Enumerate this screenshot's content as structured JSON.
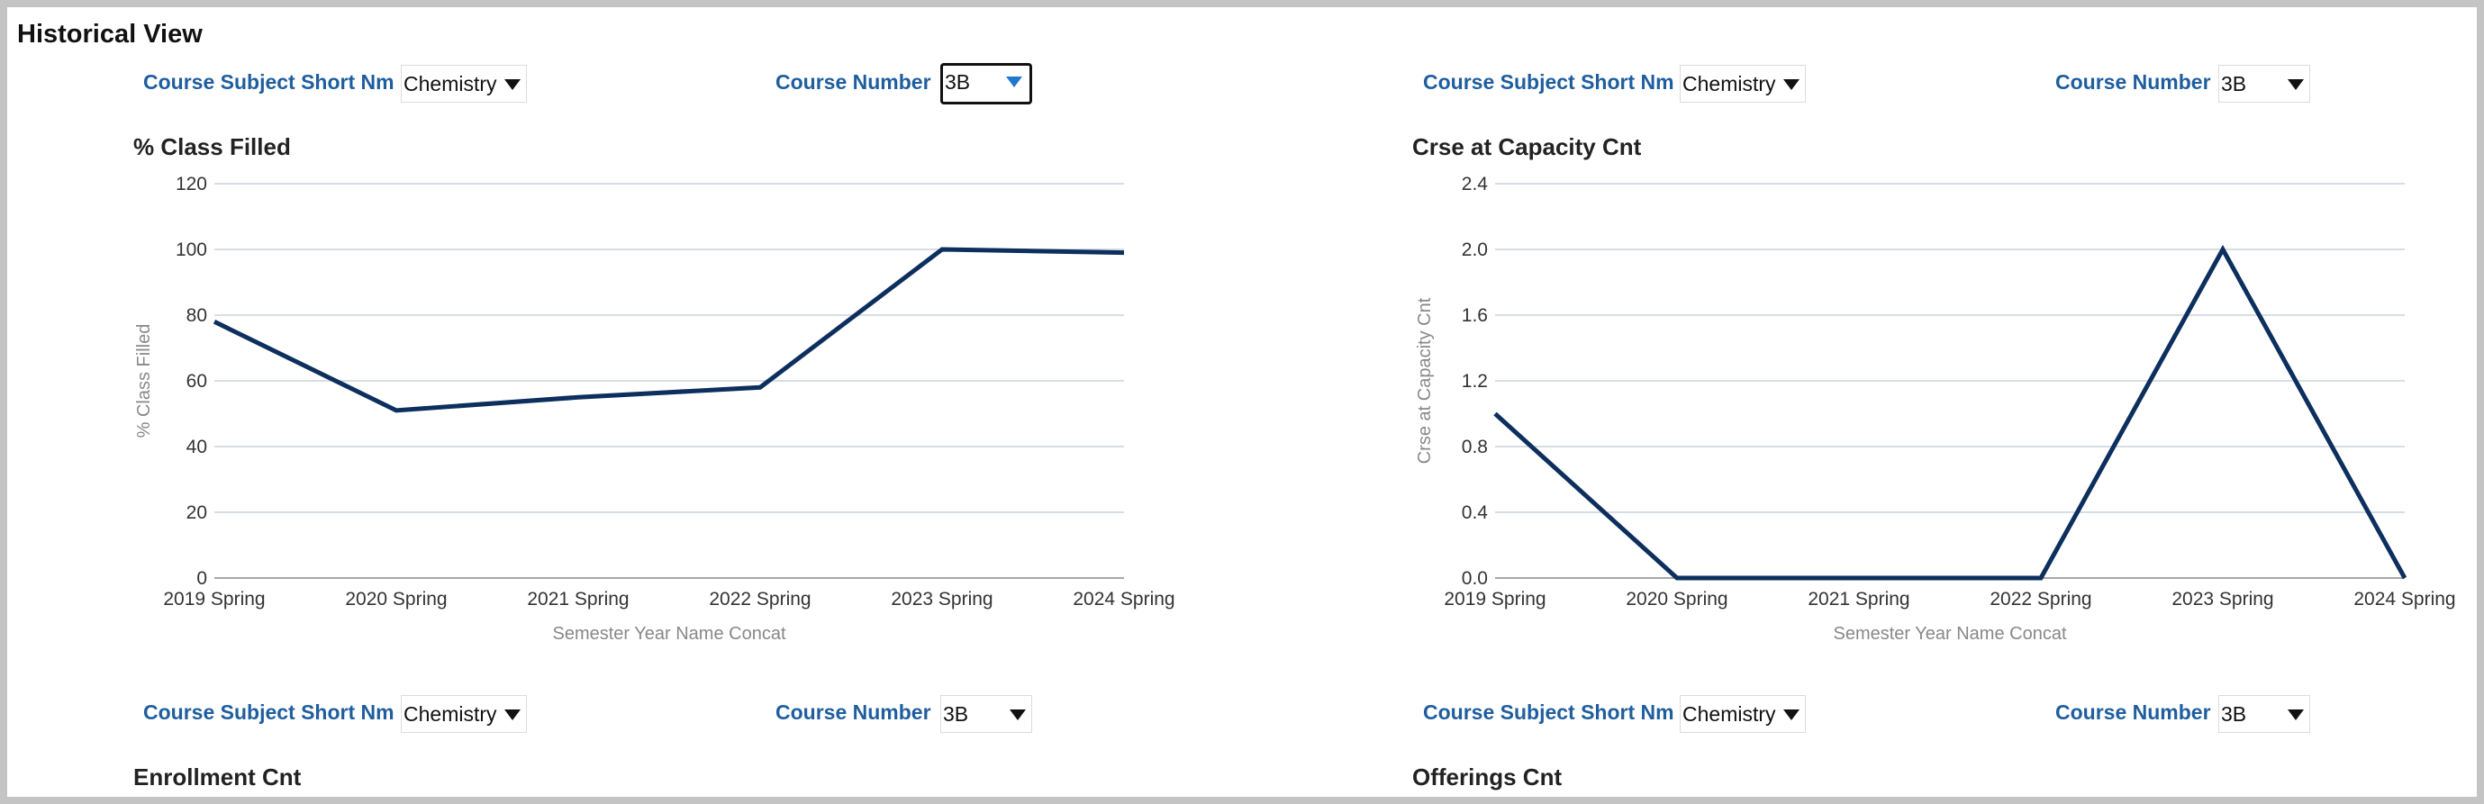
{
  "page": {
    "title": "Historical View"
  },
  "filters": [
    {
      "subject_label": "Course Subject Short Nm",
      "subject_value": "Chemistry",
      "number_label": "Course Number",
      "number_value": "3B"
    },
    {
      "subject_label": "Course Subject Short Nm",
      "subject_value": "Chemistry",
      "number_label": "Course Number",
      "number_value": "3B"
    },
    {
      "subject_label": "Course Subject Short Nm",
      "subject_value": "Chemistry",
      "number_label": "Course Number",
      "number_value": "3B"
    },
    {
      "subject_label": "Course Subject Short Nm",
      "subject_value": "Chemistry",
      "number_label": "Course Number",
      "number_value": "3B"
    }
  ],
  "colors": {
    "line": "#0d2f5e",
    "grid": "#c9d3dc",
    "label": "#1f5e9e"
  },
  "chart_data": [
    {
      "type": "line",
      "title": "% Class Filled",
      "xlabel": "Semester Year Name Concat",
      "ylabel": "% Class Filled",
      "categories": [
        "2019 Spring",
        "2020 Spring",
        "2021 Spring",
        "2022 Spring",
        "2023 Spring",
        "2024 Spring"
      ],
      "values": [
        78,
        51,
        55,
        58,
        100,
        99
      ],
      "ylim": [
        0,
        120
      ],
      "yticks": [
        "0",
        "20",
        "40",
        "60",
        "80",
        "100",
        "120"
      ],
      "grid": true
    },
    {
      "type": "line",
      "title": "Crse at Capacity Cnt",
      "xlabel": "Semester Year Name Concat",
      "ylabel": "Crse at Capacity Cnt",
      "categories": [
        "2019 Spring",
        "2020 Spring",
        "2021 Spring",
        "2022 Spring",
        "2023 Spring",
        "2024 Spring"
      ],
      "values": [
        1,
        0,
        0,
        0,
        2,
        0
      ],
      "ylim": [
        0,
        2.4
      ],
      "yticks": [
        "0.0",
        "0.4",
        "0.8",
        "1.2",
        "1.6",
        "2.0",
        "2.4"
      ],
      "grid": true
    },
    {
      "type": "line",
      "title": "Enrollment Cnt"
    },
    {
      "type": "line",
      "title": "Offerings Cnt"
    }
  ]
}
